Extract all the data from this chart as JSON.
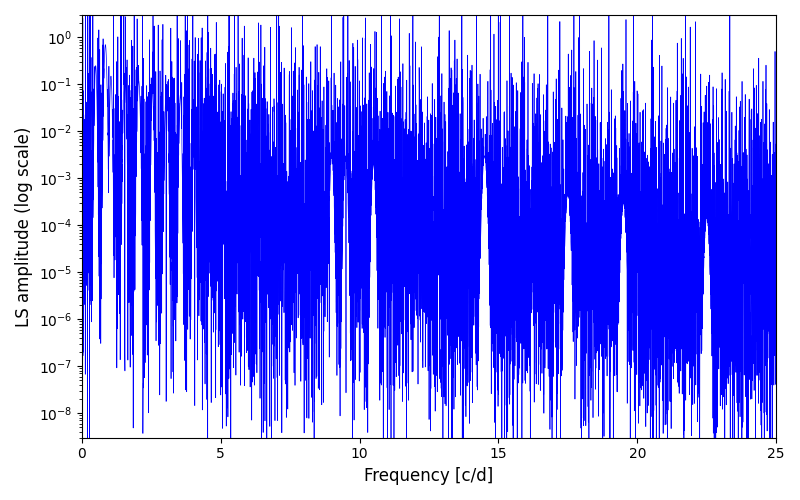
{
  "title": "",
  "xlabel": "Frequency [c/d]",
  "ylabel": "LS amplitude (log scale)",
  "xlim": [
    0,
    25
  ],
  "ylim": [
    3e-09,
    3.0
  ],
  "line_color": "blue",
  "line_width": 0.5,
  "figsize": [
    8.0,
    5.0
  ],
  "dpi": 100,
  "freq_max": 25.0,
  "n_points": 8000,
  "seed": 17
}
